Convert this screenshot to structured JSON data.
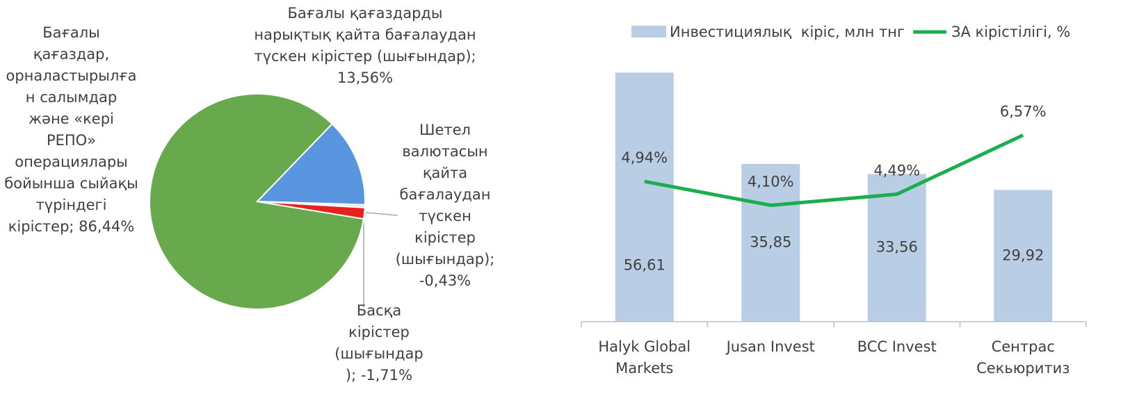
{
  "chart_data": [
    {
      "type": "pie",
      "categories": [
        "Бағалы қағаздар, орналастырылған салымдар және «кері РЕПО» операциялары бойынша сыйақы түріндегі кірістер; 86,44%",
        "Бағалы қағаздарды нарықтық қайта бағалаудан түскен кірістер (шығындар); 13,56%",
        "Шетел валютасын қайта бағалаудан түскен кірістер (шығындар); -0,43%",
        "Басқа кірістер (шығындар); -1,71%"
      ],
      "values": [
        86.44,
        13.56,
        -0.43,
        -1.71
      ],
      "colors": [
        "#68a94d",
        "#5a95e0",
        "#dbe5f1",
        "#e8201e"
      ]
    },
    {
      "type": "bar_line",
      "categories": [
        "Halyk Global Markets",
        "Jusan Invest",
        "BCC Invest",
        "Сентрас Секьюритиз"
      ],
      "series": [
        {
          "name": "Инвестициялық  кіріс, млн тнг",
          "type": "bar",
          "color": "#b9cde5",
          "values": [
            56.61,
            35.85,
            33.56,
            29.92
          ],
          "value_labels": [
            "56,61",
            "35,85",
            "33,56",
            "29,92"
          ]
        },
        {
          "name": "ЗА кірістілігі, %",
          "type": "line",
          "axis": "y2",
          "color": "#1aae4f",
          "values": [
            4.94,
            4.1,
            4.49,
            6.57
          ],
          "value_labels": [
            "4,94%",
            "4,10%",
            "4,49%",
            "6,57%"
          ]
        }
      ],
      "ylim": [
        0,
        60
      ],
      "y2lim": [
        0,
        9.3
      ],
      "legend": "top"
    }
  ]
}
